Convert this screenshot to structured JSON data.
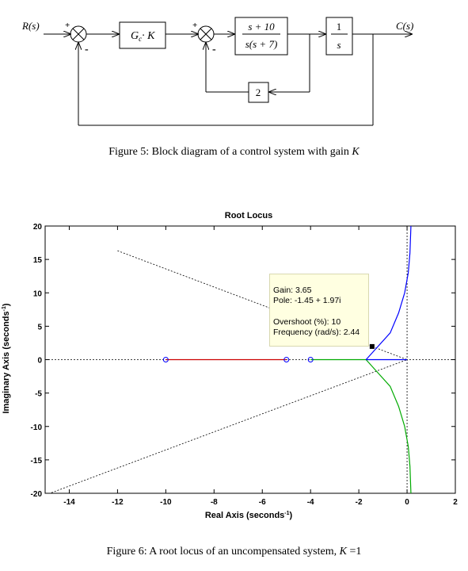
{
  "block_diagram": {
    "input_label": "R(s)",
    "output_label": "C(s)",
    "plus_sign_1": "+",
    "minus_sign_1": "-",
    "plus_sign_2": "+",
    "minus_sign_2": "-",
    "gain_block": "G",
    "gain_block_sub": "c",
    "gain_block_rest": "· K",
    "plant_numerator": "s + 10",
    "plant_denominator": "s(s + 7)",
    "integrator_numerator": "1",
    "integrator_denominator": "s",
    "feedback_gain": "2"
  },
  "caption_5": {
    "prefix": "Figure 5: Block diagram of a control system with gain ",
    "var": "K"
  },
  "chart_data": {
    "type": "line",
    "title": "Root Locus",
    "xlabel": "Real Axis (seconds",
    "xlabel_sup": "-1",
    "xlabel_end": ")",
    "ylabel": "Imaginary Axis (seconds",
    "ylabel_sup": "-1",
    "ylabel_end": ")",
    "xlim": [
      -15,
      2
    ],
    "ylim": [
      -20,
      20
    ],
    "xticks": [
      -14,
      -12,
      -10,
      -8,
      -6,
      -4,
      -2,
      0,
      2
    ],
    "yticks": [
      -20,
      -15,
      -10,
      -5,
      0,
      5,
      10,
      15,
      20
    ],
    "zeros": [
      [
        -10,
        0
      ],
      [
        -5,
        0
      ],
      [
        -4,
        0
      ]
    ],
    "series": [
      {
        "color": "#cc0000",
        "points": [
          [
            -10,
            0
          ],
          [
            -5,
            0
          ]
        ]
      },
      {
        "color": "#00aa00",
        "points": [
          [
            -4,
            0
          ],
          [
            -1.7,
            0
          ]
        ]
      },
      {
        "color": "#00aa00",
        "points": [
          [
            -1.7,
            0
          ],
          [
            -1.2,
            -2
          ],
          [
            -0.7,
            -4
          ],
          [
            -0.35,
            -7
          ],
          [
            -0.1,
            -10
          ],
          [
            0.05,
            -13
          ],
          [
            0.12,
            -16
          ],
          [
            0.16,
            -20
          ]
        ]
      },
      {
        "color": "#0000ff",
        "points": [
          [
            -1.7,
            0
          ],
          [
            -1.2,
            2
          ],
          [
            -0.7,
            4
          ],
          [
            -0.35,
            7
          ],
          [
            -0.1,
            10
          ],
          [
            0.05,
            13
          ],
          [
            0.12,
            16
          ],
          [
            0.16,
            20
          ]
        ]
      },
      {
        "color": "#0000ff",
        "points": [
          [
            0,
            0
          ],
          [
            -1.7,
            0
          ]
        ]
      }
    ],
    "damping_lines": [
      {
        "points": [
          [
            -12,
            16.3
          ],
          [
            0,
            0
          ],
          [
            -14.8,
            -20
          ]
        ]
      }
    ],
    "datatip": {
      "point": [
        -1.45,
        1.97
      ],
      "gain": "Gain: 3.65",
      "pole": "Pole: -1.45 + 1.97i",
      "overshoot": "Overshoot (%): 10",
      "frequency": "Frequency (rad/s): 2.44"
    }
  },
  "caption_6": {
    "prefix": "Figure 6: A root locus of an uncompensated system, ",
    "var": "K",
    "suffix": " =1"
  }
}
